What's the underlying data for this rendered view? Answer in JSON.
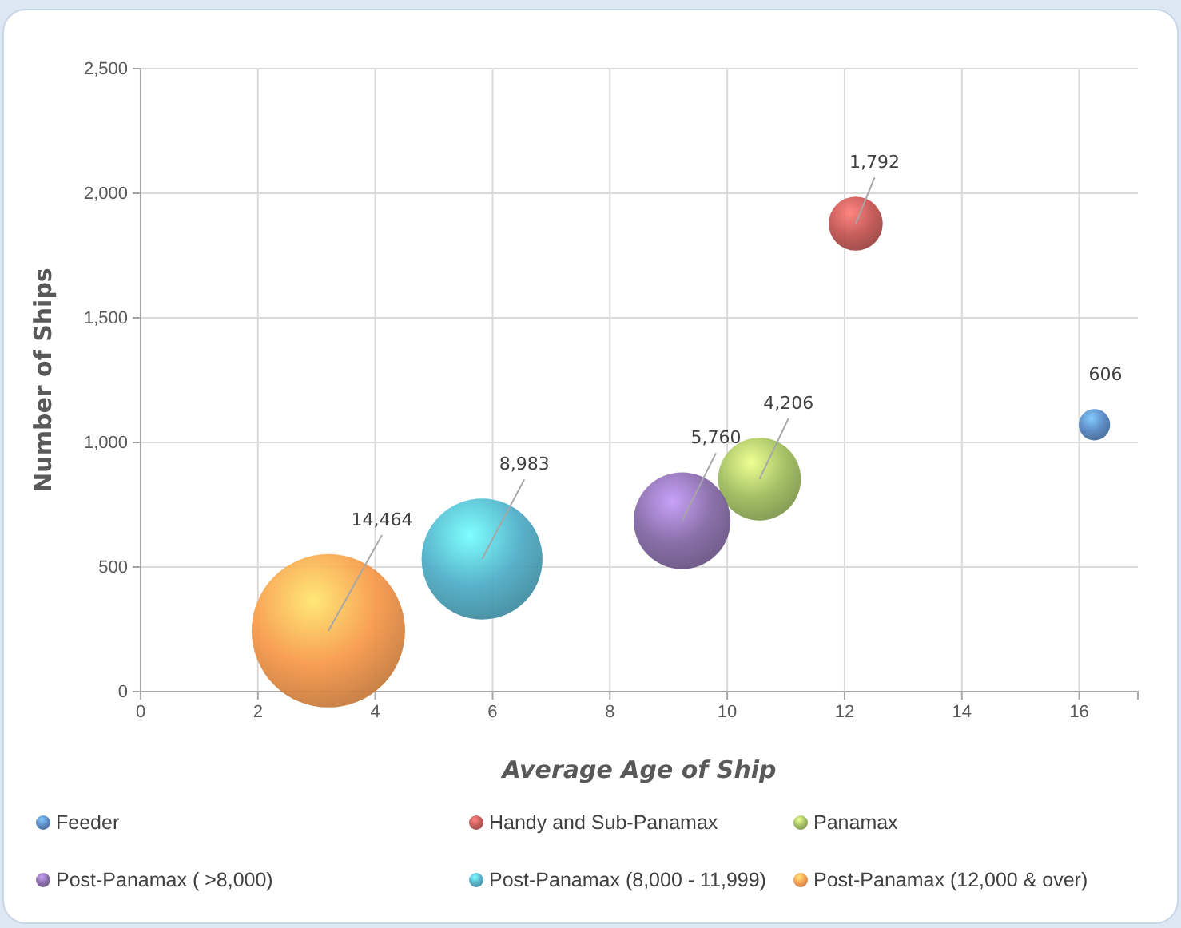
{
  "chart_data": {
    "type": "bubble",
    "xlabel": "Average Age of Ship",
    "ylabel": "Number of Ships",
    "xlim": [
      0,
      17
    ],
    "xticks": [
      0,
      2,
      4,
      6,
      8,
      10,
      12,
      14,
      16
    ],
    "ylim": [
      0,
      2500
    ],
    "yticks": [
      {
        "value": 0,
        "label": "0"
      },
      {
        "value": 500,
        "label": "500"
      },
      {
        "value": 1000,
        "label": "1,000"
      },
      {
        "value": 1500,
        "label": "1,500"
      },
      {
        "value": 2000,
        "label": "2,000"
      },
      {
        "value": 2500,
        "label": "2,500"
      }
    ],
    "grid": true,
    "legend": "bottom",
    "series": [
      {
        "name": "Feeder",
        "color": "#4f81bd",
        "x": [
          16.26
        ],
        "values": [
          1071
        ],
        "sizes": [
          606
        ],
        "value_labels": [
          "606"
        ]
      },
      {
        "name": "Handy and Sub-Panamax",
        "color": "#c0504d",
        "x": [
          12.19
        ],
        "values": [
          1878
        ],
        "sizes": [
          1792
        ],
        "value_labels": [
          "1,792"
        ]
      },
      {
        "name": "Panamax",
        "color": "#9bbb59",
        "x": [
          10.55
        ],
        "values": [
          853
        ],
        "sizes": [
          4206
        ],
        "value_labels": [
          "4,206"
        ]
      },
      {
        "name": "Post-Panamax ( >8,000)",
        "color": "#8064a2",
        "x": [
          9.23
        ],
        "values": [
          686
        ],
        "sizes": [
          5760
        ],
        "value_labels": [
          "5,760"
        ]
      },
      {
        "name": "Post-Panamax (8,000 - 11,999)",
        "color": "#4bacc6",
        "x": [
          5.82
        ],
        "values": [
          532
        ],
        "sizes": [
          8983
        ],
        "value_labels": [
          "8,983"
        ]
      },
      {
        "name": "Post-Panamax (12,000 & over)",
        "color": "#f79646",
        "x": [
          3.2
        ],
        "values": [
          244
        ],
        "sizes": [
          14464
        ],
        "value_labels": [
          "14,464"
        ]
      }
    ]
  }
}
